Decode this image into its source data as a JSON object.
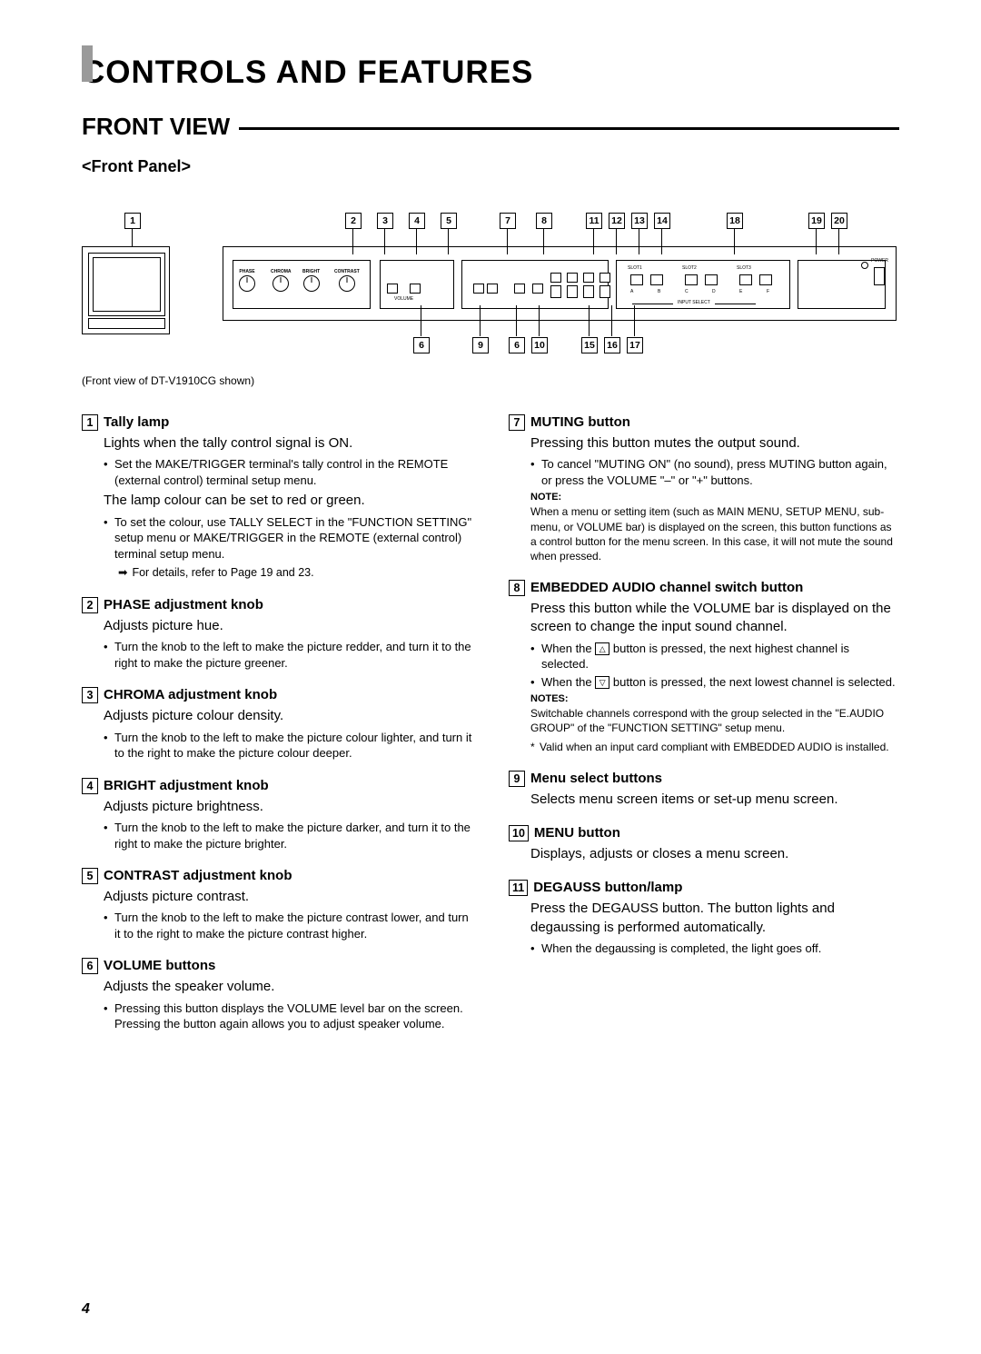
{
  "page_number": "4",
  "h1": "CONTROLS AND FEATURES",
  "h1_fontsize": 35,
  "h2": "FRONT VIEW",
  "h2_fontsize": 26,
  "h3": "<Front Panel>",
  "h3_fontsize": 18,
  "diagram_caption": "(Front view of DT-V1910CG shown)",
  "callouts_top": [
    "1",
    "2",
    "3",
    "4",
    "5",
    "7",
    "8",
    "11",
    "12",
    "13",
    "14",
    "18",
    "19",
    "20"
  ],
  "callouts_bottom": [
    "6",
    "9",
    "6",
    "10",
    "15",
    "16",
    "17"
  ],
  "panel_knob_labels": [
    "PHASE",
    "CHROMA",
    "BRIGHT",
    "CONTRAST"
  ],
  "panel_text": {
    "volume": "VOLUME",
    "menu": "MENU",
    "muting": "MUTING",
    "slot1": "SLOT1",
    "slot2": "SLOT2",
    "slot3": "SLOT3",
    "input_select": "INPUT SELECT",
    "abcdef": [
      "A",
      "B",
      "C",
      "D",
      "E",
      "F"
    ],
    "power": "POWER",
    "degauss": "DEGAUSS",
    "aspect": "ASPECT"
  },
  "icons": {
    "up": "△",
    "down": "▽",
    "arrow": "➡"
  },
  "left_items": [
    {
      "n": "1",
      "title": "Tally lamp",
      "leads": [
        "Lights when the tally control signal is ON."
      ],
      "bullets": [
        "Set the MAKE/TRIGGER terminal's tally control in the REMOTE (external control) terminal setup menu."
      ],
      "leads2": [
        "The lamp colour can be set to red or green."
      ],
      "bullets2": [
        "To set the colour, use TALLY SELECT in the \"FUNCTION SETTING\" setup menu or MAKE/TRIGGER in the REMOTE (external control) terminal setup menu."
      ],
      "arrow": "For details, refer to Page 19 and 23."
    },
    {
      "n": "2",
      "title": "PHASE adjustment knob",
      "leads": [
        "Adjusts picture hue."
      ],
      "bullets": [
        "Turn the knob to the left to make the picture redder, and turn it to the right to make the picture greener."
      ]
    },
    {
      "n": "3",
      "title": "CHROMA adjustment knob",
      "leads": [
        "Adjusts picture colour density."
      ],
      "bullets": [
        "Turn the knob to the left to make the picture colour lighter, and turn it to the right to make the picture colour deeper."
      ]
    },
    {
      "n": "4",
      "title": "BRIGHT adjustment knob",
      "leads": [
        "Adjusts picture brightness."
      ],
      "bullets": [
        "Turn the knob to the left to make the picture darker, and turn it to the right to make the picture brighter."
      ]
    },
    {
      "n": "5",
      "title": "CONTRAST adjustment knob",
      "leads": [
        "Adjusts picture contrast."
      ],
      "bullets": [
        "Turn the knob to the left to make the picture contrast lower, and turn it to the right to make the picture contrast higher."
      ]
    },
    {
      "n": "6",
      "title": "VOLUME buttons",
      "leads": [
        "Adjusts the speaker volume."
      ],
      "bullets": [
        "Pressing this button displays the VOLUME level bar on the screen.  Pressing the button again allows you to adjust speaker volume."
      ]
    }
  ],
  "right_items": [
    {
      "n": "7",
      "title": "MUTING button",
      "leads": [
        "Pressing this button mutes the output sound."
      ],
      "bullets": [
        "To cancel \"MUTING ON\" (no sound), press MUTING button again, or press the VOLUME \"–\" or \"+\" buttons."
      ],
      "note_label": "NOTE:",
      "note_text": "When a menu or setting item (such as MAIN MENU, SETUP MENU, sub-menu, or VOLUME bar) is displayed on the screen, this button functions as a control button for the menu screen.  In this case, it will not mute the sound when pressed."
    },
    {
      "n": "8",
      "title": "EMBEDDED AUDIO channel switch button",
      "leads": [
        "Press this button while the VOLUME bar is displayed on the screen to change the input sound channel."
      ],
      "bullets_icon": [
        {
          "pre": "When the ",
          "icon": "up",
          "post": " button is pressed, the next highest channel is selected."
        },
        {
          "pre": "When the ",
          "icon": "down",
          "post": " button is pressed, the next lowest channel is selected."
        }
      ],
      "note_label": "NOTES:",
      "note_text": "Switchable channels correspond with the group selected in the \"E.AUDIO GROUP\" of the \"FUNCTION SETTING\" setup menu.",
      "star": "Valid when an input card compliant with EMBEDDED AUDIO is installed."
    },
    {
      "n": "9",
      "title": "Menu select buttons",
      "leads": [
        "Selects menu screen items or set-up menu screen."
      ]
    },
    {
      "n": "10",
      "title": "MENU button",
      "leads": [
        "Displays, adjusts or closes a menu screen."
      ]
    },
    {
      "n": "11",
      "title": "DEGAUSS button/lamp",
      "leads": [
        "Press the DEGAUSS button. The button lights and degaussing is performed automatically."
      ],
      "bullets": [
        "When the degaussing is completed, the light goes off."
      ]
    }
  ]
}
